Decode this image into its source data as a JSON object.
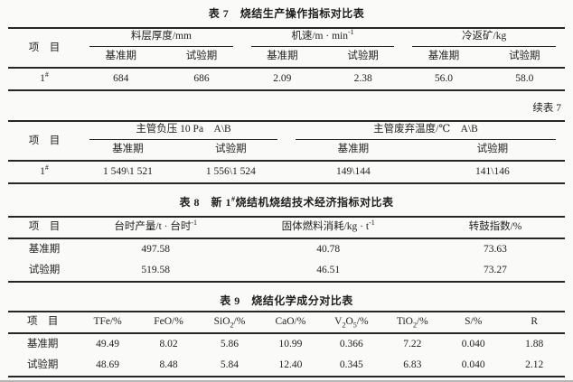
{
  "colors": {
    "paper": "#fafaf8",
    "ink": "#1f1f1f",
    "rule": "#262626",
    "page_edge": "#b6b6b6"
  },
  "table7": {
    "caption": "表 7　烧结生产操作指标对比表",
    "item_header": "项　目",
    "groups": [
      "料层厚度/mm",
      "机速/m · min^{-1}",
      "冷返矿/kg"
    ],
    "sub_headers": [
      "基准期",
      "试验期",
      "基准期",
      "试验期",
      "基准期",
      "试验期"
    ],
    "row": {
      "item": "1^{#}",
      "values": [
        "684",
        "686",
        "2.09",
        "2.38",
        "56.0",
        "58.0"
      ]
    }
  },
  "table7_cont": {
    "caption": "续表 7",
    "item_header": "项　目",
    "groups": [
      "主管负压 10 Pa　A\\B",
      "主管废弃温度/℃　A\\B"
    ],
    "sub_headers": [
      "基准期",
      "试验期",
      "基准期",
      "试验期"
    ],
    "row": {
      "item": "1^{#}",
      "values": [
        "1 549\\1 521",
        "1 556\\1 524",
        "149\\144",
        "141\\146"
      ]
    }
  },
  "table8": {
    "caption": "表 8　新 1^{#}烧结机烧结技术经济指标对比表",
    "headers": [
      "项　目",
      "台时产量/t · 台时^{-1}",
      "固体燃料消耗/kg · t^{-1}",
      "转鼓指数/%"
    ],
    "rows": [
      {
        "item": "基准期",
        "values": [
          "497.58",
          "40.78",
          "73.63"
        ]
      },
      {
        "item": "试验期",
        "values": [
          "519.58",
          "46.51",
          "73.27"
        ]
      }
    ]
  },
  "table9": {
    "caption": "表 9　烧结化学成分对比表",
    "headers": [
      "项　目",
      "TFe/%",
      "FeO/%",
      "SiO_{2}/%",
      "CaO/%",
      "V_{2}O_{5}/%",
      "TiO_{2}/%",
      "S/%",
      "R"
    ],
    "rows": [
      {
        "item": "基准期",
        "values": [
          "49.49",
          "8.02",
          "5.86",
          "10.99",
          "0.366",
          "7.22",
          "0.040",
          "1.88"
        ]
      },
      {
        "item": "试验期",
        "values": [
          "48.69",
          "8.48",
          "5.84",
          "12.40",
          "0.345",
          "6.83",
          "0.040",
          "2.12"
        ]
      }
    ]
  }
}
